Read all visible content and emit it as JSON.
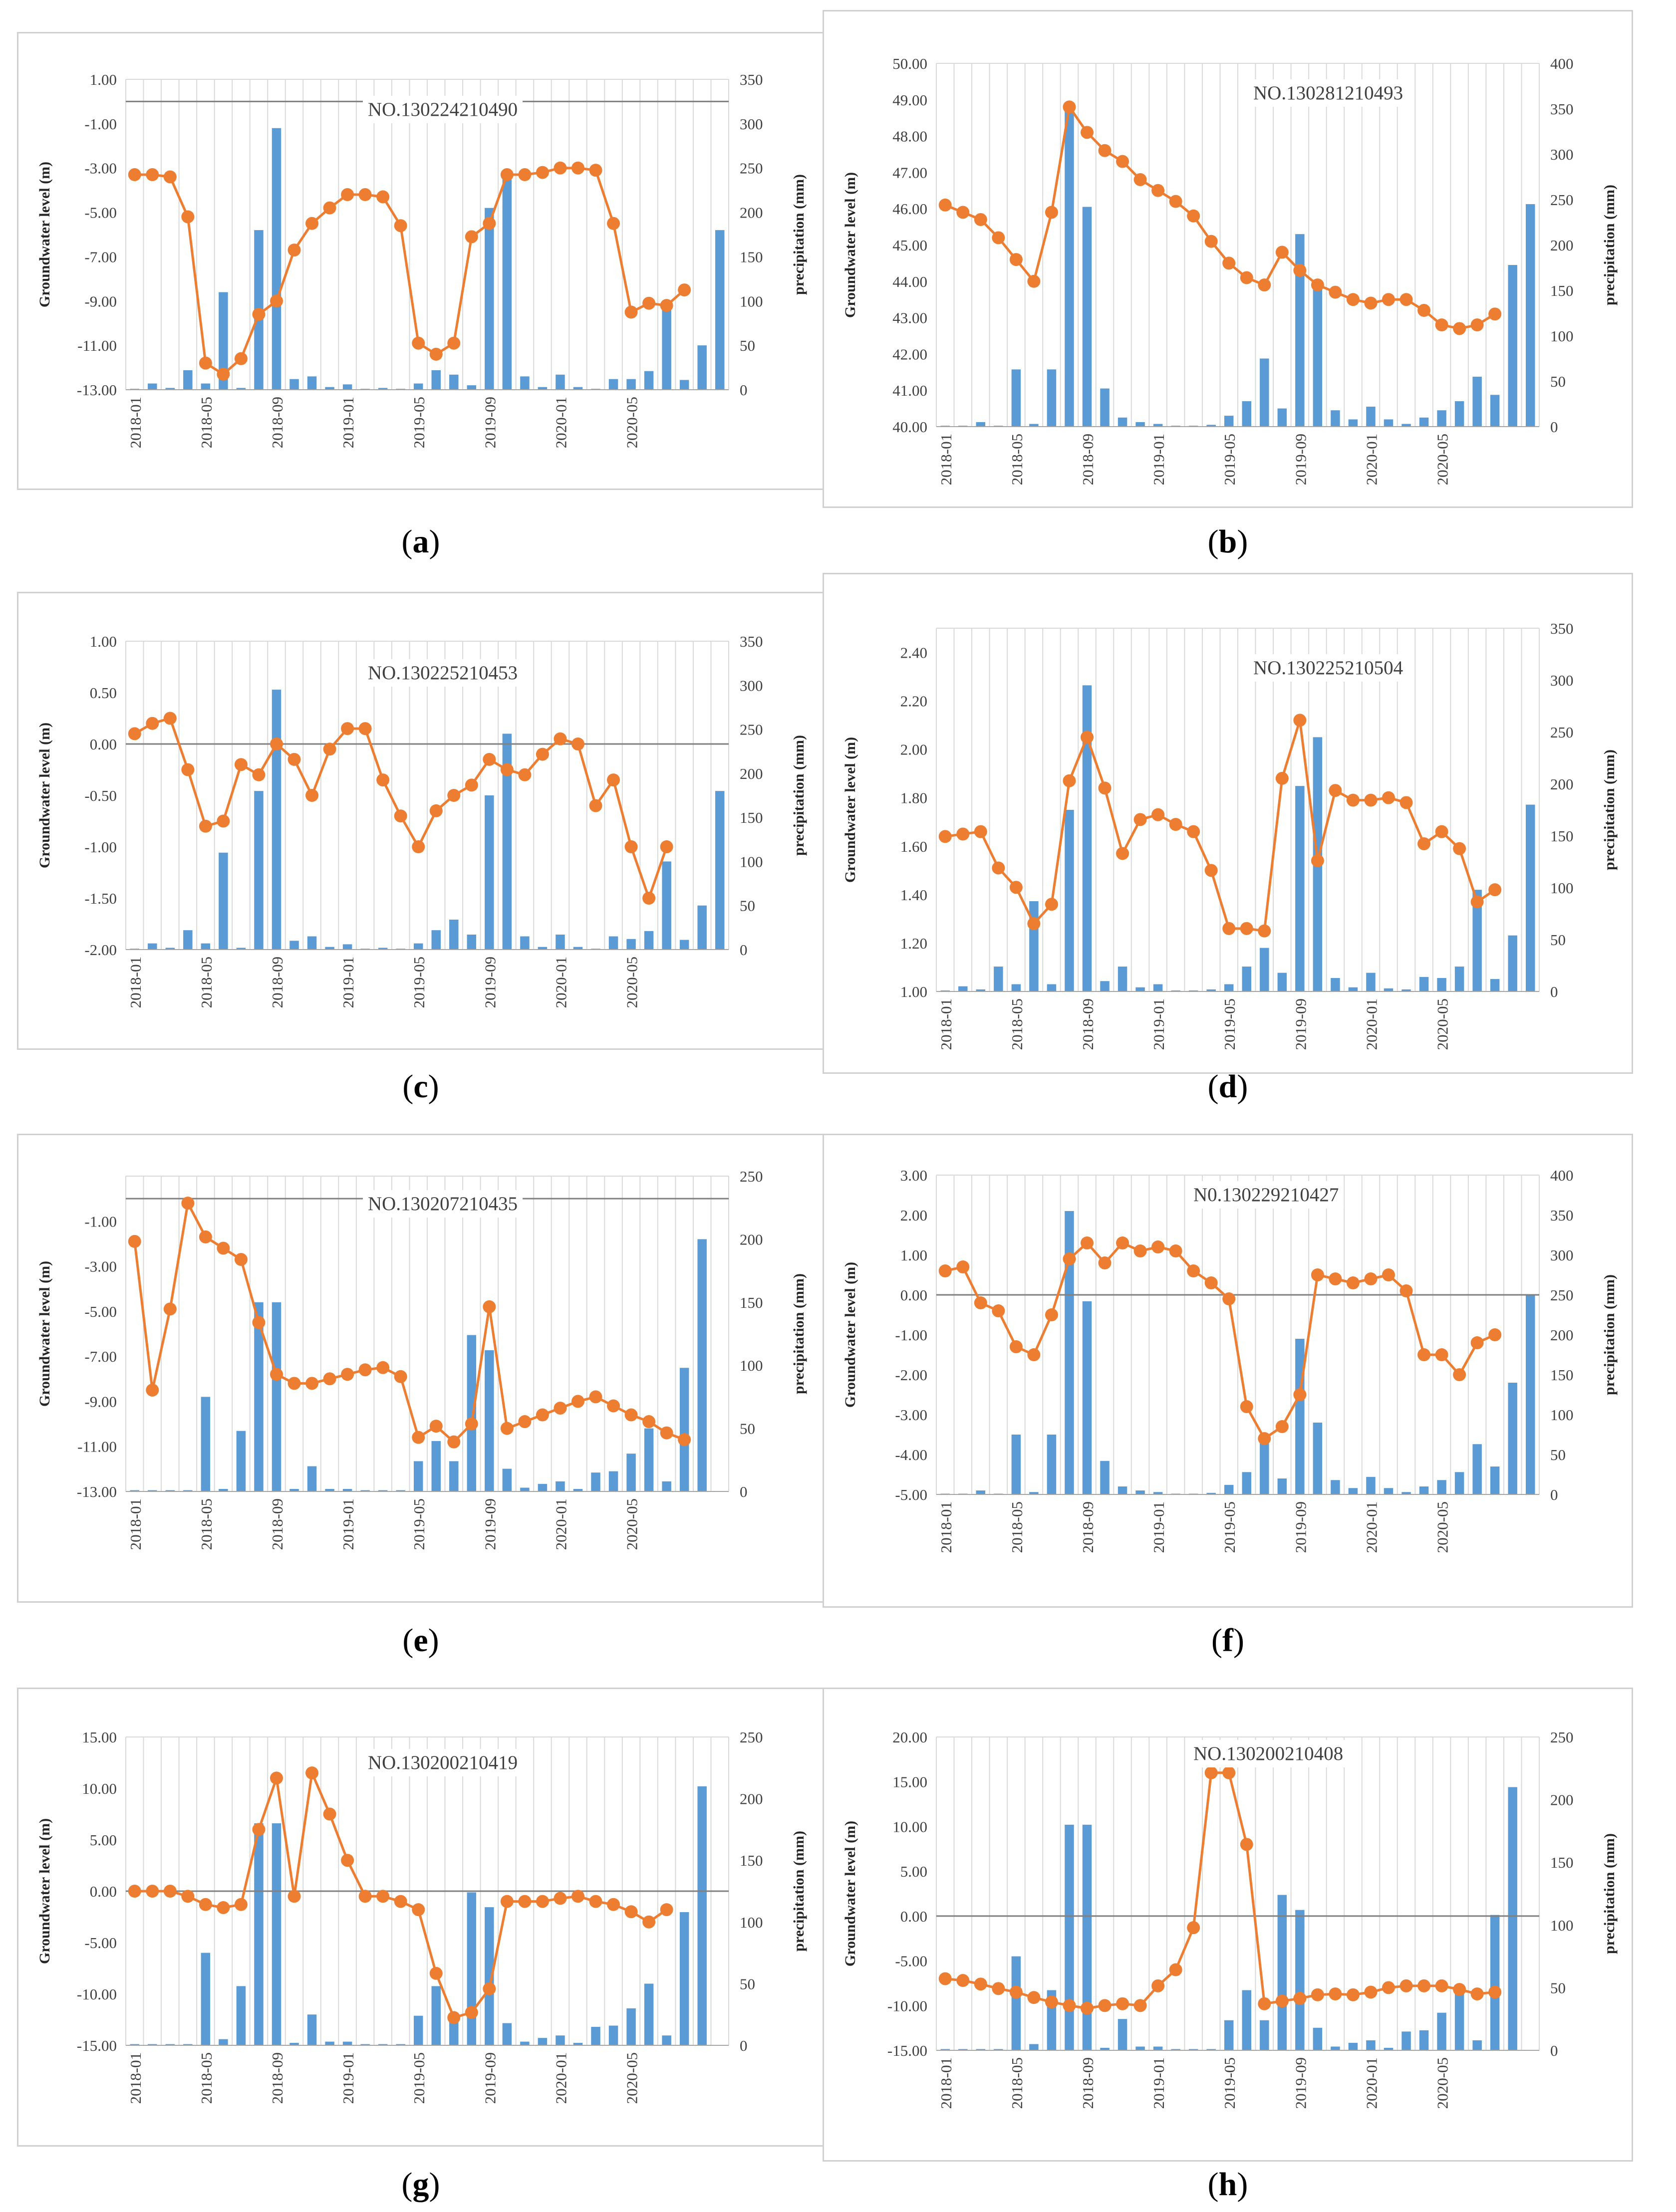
{
  "figure": {
    "x_ticks": [
      "2018-01",
      "2018-05",
      "2018-09",
      "2019-01",
      "2019-05",
      "2019-09",
      "2020-01",
      "2020-05"
    ]
  },
  "colors": {
    "bar": "#5b9bd5",
    "line": "#ed7d31",
    "grid": "#d9d9d9",
    "zero": "#808080",
    "axis": "#404040"
  },
  "chart_data": [
    {
      "panel": "a",
      "type": "bar+line",
      "title": "NO.130224210490",
      "ylabel": "Groundwater level (m)",
      "y2label": "precipitation (mm)",
      "ylim": [
        -13,
        1
      ],
      "y_ticks": [
        "1.00",
        "-1.00",
        "-3.00",
        "-5.00",
        "-7.00",
        "-9.00",
        "-11.00",
        "-13.00"
      ],
      "y_tick_values": [
        1,
        -1,
        -3,
        -5,
        -7,
        -9,
        -11,
        -13
      ],
      "y2lim": [
        0,
        350
      ],
      "y2_ticks": [
        "0",
        "50",
        "100",
        "150",
        "200",
        "250",
        "300",
        "350"
      ],
      "y2_tick_values": [
        0,
        50,
        100,
        150,
        200,
        250,
        300,
        350
      ],
      "level": [
        -3.3,
        -3.3,
        -3.4,
        -5.2,
        -11.8,
        -12.3,
        -11.6,
        -9.6,
        -9.0,
        -6.7,
        -5.5,
        -4.8,
        -4.2,
        -4.2,
        -4.3,
        -5.6,
        -10.9,
        -11.4,
        -10.9,
        -6.1,
        -5.5,
        -3.3,
        -3.3,
        -3.2,
        -3.0,
        -3.0,
        -3.1,
        -5.5,
        -9.5,
        -9.1,
        -9.2,
        -8.5
      ],
      "precip": [
        1,
        7,
        2,
        22,
        7,
        110,
        2,
        180,
        295,
        12,
        15,
        3,
        6,
        1,
        2,
        1,
        7,
        22,
        17,
        5,
        205,
        245,
        15,
        3,
        17,
        3,
        1,
        12,
        12,
        21,
        100,
        11,
        50,
        180
      ]
    },
    {
      "panel": "b",
      "type": "bar+line",
      "title": "NO.130281210493",
      "ylabel": "Groundwater level (m)",
      "y2label": "precipitation (mm)",
      "ylim": [
        40,
        50
      ],
      "y_ticks": [
        "50.00",
        "49.00",
        "48.00",
        "47.00",
        "46.00",
        "45.00",
        "44.00",
        "43.00",
        "42.00",
        "41.00",
        "40.00"
      ],
      "y_tick_values": [
        50,
        49,
        48,
        47,
        46,
        45,
        44,
        43,
        42,
        41,
        40
      ],
      "y2lim": [
        0,
        400
      ],
      "y2_ticks": [
        "0",
        "50",
        "100",
        "150",
        "200",
        "250",
        "300",
        "350",
        "400"
      ],
      "y2_tick_values": [
        0,
        50,
        100,
        150,
        200,
        250,
        300,
        350,
        400
      ],
      "level": [
        46.1,
        45.9,
        45.7,
        45.2,
        44.6,
        44.0,
        45.9,
        48.8,
        48.1,
        47.6,
        47.3,
        46.8,
        46.5,
        46.2,
        45.8,
        45.1,
        44.5,
        44.1,
        43.9,
        44.8,
        44.3,
        43.9,
        43.7,
        43.5,
        43.4,
        43.5,
        43.5,
        43.2,
        42.8,
        42.7,
        42.8,
        43.1
      ],
      "precip": [
        1,
        1,
        5,
        1,
        63,
        3,
        63,
        355,
        242,
        42,
        10,
        5,
        3,
        1,
        1,
        2,
        12,
        28,
        75,
        20,
        212,
        155,
        18,
        8,
        22,
        8,
        3,
        10,
        18,
        28,
        55,
        35,
        178,
        245
      ]
    },
    {
      "panel": "c",
      "type": "bar+line",
      "title": "NO.130225210453",
      "ylabel": "Groundwater level (m)",
      "y2label": "precipitation (mm)",
      "ylim": [
        -2,
        1
      ],
      "y_ticks": [
        "1.00",
        "0.50",
        "0.00",
        "-0.50",
        "-1.00",
        "-1.50",
        "-2.00"
      ],
      "y_tick_values": [
        1,
        0.5,
        0,
        -0.5,
        -1,
        -1.5,
        -2
      ],
      "y2lim": [
        0,
        350
      ],
      "y2_ticks": [
        "0",
        "50",
        "100",
        "150",
        "200",
        "250",
        "300",
        "350"
      ],
      "y2_tick_values": [
        0,
        50,
        100,
        150,
        200,
        250,
        300,
        350
      ],
      "level": [
        0.1,
        0.2,
        0.25,
        -0.25,
        -0.8,
        -0.75,
        -0.2,
        -0.3,
        0.0,
        -0.15,
        -0.5,
        -0.05,
        0.15,
        0.15,
        -0.35,
        -0.7,
        -1.0,
        -0.65,
        -0.5,
        -0.4,
        -0.15,
        -0.25,
        -0.3,
        -0.1,
        0.05,
        0.0,
        -0.6,
        -0.35,
        -1.0,
        -1.5,
        -1.0
      ],
      "precip": [
        1,
        7,
        2,
        22,
        7,
        110,
        2,
        180,
        295,
        10,
        15,
        3,
        6,
        1,
        2,
        1,
        7,
        22,
        34,
        17,
        175,
        245,
        15,
        3,
        17,
        3,
        1,
        15,
        12,
        21,
        100,
        11,
        50,
        180
      ]
    },
    {
      "panel": "d",
      "type": "bar+line",
      "title": "NO.130225210504",
      "ylabel": "Groundwater level (m)",
      "y2label": "precipitation (mm)",
      "ylim": [
        1,
        2.5
      ],
      "y_ticks": [
        "2.40",
        "2.20",
        "2.00",
        "1.80",
        "1.60",
        "1.40",
        "1.20",
        "1.00"
      ],
      "y_tick_values": [
        2.4,
        2.2,
        2.0,
        1.8,
        1.6,
        1.4,
        1.2,
        1.0
      ],
      "y2lim": [
        0,
        350
      ],
      "y2_ticks": [
        "0",
        "50",
        "100",
        "150",
        "200",
        "250",
        "300",
        "350"
      ],
      "y2_tick_values": [
        0,
        50,
        100,
        150,
        200,
        250,
        300,
        350
      ],
      "level": [
        1.64,
        1.65,
        1.66,
        1.51,
        1.43,
        1.28,
        1.36,
        1.87,
        2.05,
        1.84,
        1.57,
        1.71,
        1.73,
        1.69,
        1.66,
        1.5,
        1.26,
        1.26,
        1.25,
        1.88,
        2.12,
        1.54,
        1.83,
        1.79,
        1.79,
        1.8,
        1.78,
        1.61,
        1.66,
        1.59,
        1.37,
        1.42
      ],
      "precip": [
        1,
        5,
        2,
        24,
        7,
        87,
        7,
        175,
        295,
        10,
        24,
        4,
        7,
        1,
        1,
        2,
        7,
        24,
        42,
        18,
        198,
        245,
        13,
        4,
        18,
        3,
        2,
        14,
        13,
        24,
        98,
        12,
        54,
        180
      ]
    },
    {
      "panel": "e",
      "type": "bar+line",
      "title": "NO.130207210435",
      "ylabel": "Groundwater level (m)",
      "y2label": "precipitation (mm)",
      "ylim": [
        -13,
        1
      ],
      "y_ticks": [
        "-1.00",
        "-3.00",
        "-5.00",
        "-7.00",
        "-9.00",
        "-11.00",
        "-13.00"
      ],
      "y_tick_values": [
        -1,
        -3,
        -5,
        -7,
        -9,
        -11,
        -13
      ],
      "y2lim": [
        0,
        250
      ],
      "y2_ticks": [
        "0",
        "50",
        "100",
        "150",
        "200",
        "250"
      ],
      "y2_tick_values": [
        0,
        50,
        100,
        150,
        200,
        250
      ],
      "level": [
        -1.9,
        -8.5,
        -4.9,
        -0.2,
        -1.7,
        -2.2,
        -2.7,
        -5.5,
        -7.8,
        -8.2,
        -8.2,
        -8.0,
        -7.8,
        -7.6,
        -7.5,
        -7.9,
        -10.6,
        -10.1,
        -10.8,
        -10.0,
        -4.8,
        -10.2,
        -9.9,
        -9.6,
        -9.3,
        -9.0,
        -8.8,
        -9.2,
        -9.6,
        -9.9,
        -10.4,
        -10.7
      ],
      "precip": [
        1,
        1,
        1,
        1,
        75,
        2,
        48,
        150,
        150,
        2,
        20,
        2,
        2,
        1,
        1,
        1,
        24,
        40,
        24,
        124,
        112,
        18,
        3,
        6,
        8,
        2,
        15,
        16,
        30,
        50,
        8,
        98,
        200
      ]
    },
    {
      "panel": "f",
      "type": "bar+line",
      "title": "N0.130229210427",
      "ylabel": "Groundwater level (m)",
      "y2label": "precipitation (mm)",
      "ylim": [
        -5,
        3
      ],
      "y_ticks": [
        "3.00",
        "2.00",
        "1.00",
        "0.00",
        "-1.00",
        "-2.00",
        "-3.00",
        "-4.00",
        "-5.00"
      ],
      "y_tick_values": [
        3,
        2,
        1,
        0,
        -1,
        -2,
        -3,
        -4,
        -5
      ],
      "y2lim": [
        0,
        400
      ],
      "y2_ticks": [
        "0",
        "50",
        "100",
        "150",
        "200",
        "250",
        "300",
        "350",
        "400"
      ],
      "y2_tick_values": [
        0,
        50,
        100,
        150,
        200,
        250,
        300,
        350,
        400
      ],
      "level": [
        0.6,
        0.7,
        -0.2,
        -0.4,
        -1.3,
        -1.5,
        -0.5,
        0.9,
        1.3,
        0.8,
        1.3,
        1.1,
        1.2,
        1.1,
        0.6,
        0.3,
        -0.1,
        -2.8,
        -3.6,
        -3.3,
        -2.5,
        0.5,
        0.4,
        0.3,
        0.4,
        0.5,
        0.1,
        -1.5,
        -1.5,
        -2.0,
        -1.2,
        -1.0
      ],
      "precip": [
        1,
        1,
        5,
        1,
        75,
        3,
        75,
        355,
        242,
        42,
        10,
        5,
        3,
        1,
        1,
        2,
        12,
        28,
        75,
        20,
        195,
        90,
        18,
        8,
        22,
        8,
        3,
        10,
        18,
        28,
        63,
        35,
        140,
        250
      ]
    },
    {
      "panel": "g",
      "type": "bar+line",
      "title": "NO.130200210419",
      "ylabel": "Groundwater level (m)",
      "y2label": "precipitation (mm)",
      "ylim": [
        -15,
        15
      ],
      "y_ticks": [
        "15.00",
        "10.00",
        "5.00",
        "0.00",
        "-5.00",
        "-10.00",
        "-15.00"
      ],
      "y_tick_values": [
        15,
        10,
        5,
        0,
        -5,
        -10,
        -15
      ],
      "y2lim": [
        0,
        250
      ],
      "y2_ticks": [
        "0",
        "50",
        "100",
        "150",
        "200",
        "250"
      ],
      "y2_tick_values": [
        0,
        50,
        100,
        150,
        200,
        250
      ],
      "level": [
        0.0,
        0.0,
        0.0,
        -0.5,
        -1.3,
        -1.6,
        -1.3,
        6.0,
        11.0,
        -0.5,
        11.5,
        7.5,
        3.0,
        -0.5,
        -0.5,
        -1.0,
        -1.8,
        -8.0,
        -12.3,
        -11.8,
        -9.5,
        -1.0,
        -1.0,
        -1.0,
        -0.7,
        -0.5,
        -1.0,
        -1.3,
        -2.0,
        -3.0,
        -1.8
      ],
      "precip": [
        1,
        1,
        1,
        1,
        75,
        5,
        48,
        180,
        180,
        2,
        25,
        3,
        3,
        1,
        1,
        1,
        24,
        48,
        24,
        124,
        112,
        18,
        3,
        6,
        8,
        2,
        15,
        16,
        30,
        50,
        8,
        108,
        210
      ]
    },
    {
      "panel": "h",
      "type": "bar+line",
      "title": "NO.130200210408",
      "ylabel": "Groundwater level (m)",
      "y2label": "precipitation (mm)",
      "ylim": [
        -15,
        20
      ],
      "y_ticks": [
        "20.00",
        "15.00",
        "10.00",
        "5.00",
        "0.00",
        "-5.00",
        "-10.00",
        "-15.00"
      ],
      "y_tick_values": [
        20,
        15,
        10,
        5,
        0,
        -5,
        -10,
        -15
      ],
      "y2lim": [
        0,
        250
      ],
      "y2_ticks": [
        "0",
        "50",
        "100",
        "150",
        "200",
        "250"
      ],
      "y2_tick_values": [
        0,
        50,
        100,
        150,
        200,
        250
      ],
      "level": [
        -7.0,
        -7.2,
        -7.6,
        -8.1,
        -8.5,
        -9.1,
        -9.6,
        -10.0,
        -10.3,
        -10.0,
        -9.8,
        -10.0,
        -7.8,
        -6.0,
        -1.3,
        16.0,
        16.0,
        8.0,
        -9.8,
        -9.5,
        -9.2,
        -8.8,
        -8.7,
        -8.8,
        -8.5,
        -8.0,
        -7.8,
        -7.8,
        -7.8,
        -8.2,
        -8.7,
        -8.5
      ],
      "precip": [
        1,
        1,
        1,
        1,
        75,
        5,
        48,
        180,
        180,
        2,
        25,
        3,
        3,
        1,
        1,
        1,
        24,
        48,
        24,
        124,
        112,
        18,
        3,
        6,
        8,
        2,
        15,
        16,
        30,
        50,
        8,
        108,
        210
      ]
    }
  ],
  "captions": {
    "a": "a",
    "b": "b",
    "c": "c",
    "d": "d",
    "e": "e",
    "f": "f",
    "g": "g",
    "h": "h"
  }
}
